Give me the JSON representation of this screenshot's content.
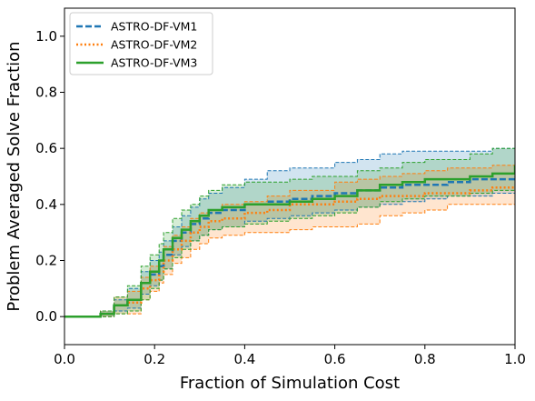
{
  "chart_data": {
    "type": "line",
    "xlabel": "Fraction of Simulation Cost",
    "ylabel": "Problem Averaged Solve Fraction",
    "xlim": [
      0.0,
      1.0
    ],
    "ylim": [
      -0.1,
      1.1
    ],
    "xticks": [
      "0.0",
      "0.2",
      "0.4",
      "0.6",
      "0.8",
      "1.0"
    ],
    "yticks": [
      "0.0",
      "0.2",
      "0.4",
      "0.6",
      "0.8",
      "1.0"
    ],
    "legend": "top-left",
    "grid": false,
    "series": [
      {
        "name": "ASTRO-DF-VM1",
        "color": "#1f77b4",
        "linestyle": "dashed",
        "x": [
          0.0,
          0.08,
          0.11,
          0.14,
          0.17,
          0.19,
          0.21,
          0.22,
          0.24,
          0.26,
          0.28,
          0.3,
          0.32,
          0.35,
          0.4,
          0.45,
          0.5,
          0.55,
          0.6,
          0.65,
          0.7,
          0.75,
          0.8,
          0.85,
          0.9,
          0.95,
          1.0
        ],
        "y": [
          0.0,
          0.01,
          0.04,
          0.06,
          0.12,
          0.15,
          0.18,
          0.22,
          0.27,
          0.3,
          0.33,
          0.35,
          0.37,
          0.38,
          0.4,
          0.41,
          0.42,
          0.43,
          0.44,
          0.45,
          0.46,
          0.47,
          0.47,
          0.48,
          0.49,
          0.49,
          0.5
        ],
        "upper": [
          0.0,
          0.02,
          0.06,
          0.1,
          0.16,
          0.2,
          0.23,
          0.27,
          0.32,
          0.36,
          0.39,
          0.42,
          0.44,
          0.46,
          0.49,
          0.52,
          0.53,
          0.53,
          0.55,
          0.56,
          0.58,
          0.59,
          0.59,
          0.59,
          0.59,
          0.6,
          0.6
        ],
        "lower": [
          0.0,
          0.0,
          0.02,
          0.03,
          0.08,
          0.11,
          0.13,
          0.17,
          0.22,
          0.25,
          0.27,
          0.29,
          0.31,
          0.32,
          0.34,
          0.35,
          0.36,
          0.37,
          0.38,
          0.39,
          0.4,
          0.41,
          0.42,
          0.43,
          0.43,
          0.44,
          0.44
        ]
      },
      {
        "name": "ASTRO-DF-VM2",
        "color": "#ff7f0e",
        "linestyle": "dotted",
        "x": [
          0.0,
          0.08,
          0.11,
          0.14,
          0.17,
          0.19,
          0.21,
          0.22,
          0.24,
          0.26,
          0.28,
          0.3,
          0.32,
          0.35,
          0.4,
          0.45,
          0.5,
          0.55,
          0.6,
          0.65,
          0.7,
          0.75,
          0.8,
          0.85,
          0.9,
          0.95,
          1.0
        ],
        "y": [
          0.0,
          0.01,
          0.04,
          0.05,
          0.1,
          0.13,
          0.16,
          0.2,
          0.24,
          0.27,
          0.3,
          0.32,
          0.34,
          0.35,
          0.37,
          0.38,
          0.4,
          0.4,
          0.41,
          0.42,
          0.43,
          0.43,
          0.44,
          0.44,
          0.45,
          0.46,
          0.46
        ],
        "upper": [
          0.0,
          0.02,
          0.07,
          0.09,
          0.14,
          0.18,
          0.2,
          0.25,
          0.29,
          0.32,
          0.35,
          0.37,
          0.38,
          0.4,
          0.41,
          0.43,
          0.45,
          0.45,
          0.48,
          0.49,
          0.5,
          0.51,
          0.52,
          0.53,
          0.53,
          0.54,
          0.56
        ],
        "lower": [
          0.0,
          0.0,
          0.01,
          0.01,
          0.06,
          0.09,
          0.12,
          0.15,
          0.19,
          0.21,
          0.24,
          0.26,
          0.28,
          0.29,
          0.3,
          0.3,
          0.31,
          0.32,
          0.32,
          0.33,
          0.36,
          0.37,
          0.38,
          0.4,
          0.4,
          0.4,
          0.4
        ]
      },
      {
        "name": "ASTRO-DF-VM3",
        "color": "#2ca02c",
        "linestyle": "solid",
        "x": [
          0.0,
          0.08,
          0.11,
          0.14,
          0.17,
          0.19,
          0.21,
          0.22,
          0.24,
          0.26,
          0.28,
          0.3,
          0.32,
          0.35,
          0.4,
          0.45,
          0.5,
          0.55,
          0.6,
          0.65,
          0.7,
          0.75,
          0.8,
          0.85,
          0.9,
          0.95,
          1.0
        ],
        "y": [
          0.0,
          0.01,
          0.04,
          0.06,
          0.12,
          0.16,
          0.2,
          0.24,
          0.28,
          0.31,
          0.34,
          0.36,
          0.38,
          0.39,
          0.4,
          0.4,
          0.41,
          0.42,
          0.43,
          0.45,
          0.47,
          0.48,
          0.49,
          0.49,
          0.5,
          0.51,
          0.54
        ],
        "upper": [
          0.0,
          0.02,
          0.07,
          0.11,
          0.18,
          0.22,
          0.26,
          0.3,
          0.35,
          0.38,
          0.4,
          0.43,
          0.45,
          0.47,
          0.48,
          0.48,
          0.49,
          0.5,
          0.5,
          0.52,
          0.53,
          0.55,
          0.56,
          0.56,
          0.58,
          0.6,
          0.63
        ],
        "lower": [
          0.0,
          0.0,
          0.01,
          0.02,
          0.06,
          0.1,
          0.13,
          0.17,
          0.21,
          0.24,
          0.27,
          0.29,
          0.31,
          0.32,
          0.33,
          0.34,
          0.35,
          0.36,
          0.37,
          0.39,
          0.41,
          0.42,
          0.43,
          0.43,
          0.44,
          0.45,
          0.47
        ]
      }
    ]
  }
}
